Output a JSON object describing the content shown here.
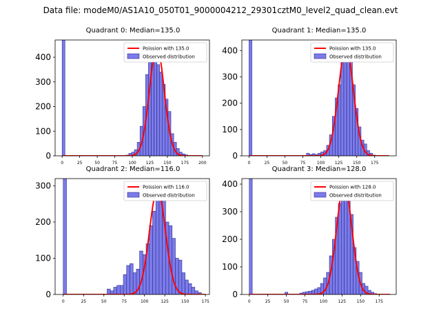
{
  "figure": {
    "suptitle": "Data file: modeM0/AS1A10_050T01_9000004212_29301cztM0_level2_quad_clean.evt"
  },
  "colors": {
    "bar_fill": "#7b7bea",
    "bar_edge": "#2c2c8a",
    "curve": "#ff0000",
    "axis": "#000000"
  },
  "chart_data": [
    {
      "type": "bar",
      "title": "Quadrant 0: Median=135.0",
      "median": 135.0,
      "bin_width": 4,
      "xlim": [
        -10,
        210
      ],
      "ylim": [
        0,
        470
      ],
      "xticks": [
        0,
        25,
        50,
        75,
        100,
        125,
        150,
        175,
        200
      ],
      "yticks": [
        0,
        100,
        200,
        300,
        400
      ],
      "legend": [
        "Poission with 135.0",
        "Observed distribution"
      ],
      "legend_position": "top-right",
      "bins": [
        [
          0,
          470
        ],
        [
          91,
          3
        ],
        [
          95,
          10
        ],
        [
          99,
          15
        ],
        [
          103,
          25
        ],
        [
          107,
          55
        ],
        [
          111,
          120
        ],
        [
          115,
          200
        ],
        [
          119,
          330
        ],
        [
          123,
          400
        ],
        [
          127,
          430
        ],
        [
          131,
          440
        ],
        [
          135,
          370
        ],
        [
          139,
          340
        ],
        [
          143,
          290
        ],
        [
          147,
          230
        ],
        [
          151,
          180
        ],
        [
          155,
          90
        ],
        [
          159,
          55
        ],
        [
          163,
          30
        ],
        [
          167,
          15
        ],
        [
          171,
          8
        ],
        [
          175,
          4
        ],
        [
          179,
          2
        ]
      ],
      "curve": {
        "mean": 135.0,
        "sigma": 10.5,
        "peak": 440,
        "x": [
          0,
          200
        ]
      }
    },
    {
      "type": "bar",
      "title": "Quadrant 1: Median=135.0",
      "median": 135.0,
      "bin_width": 4,
      "xlim": [
        -10,
        205
      ],
      "ylim": [
        0,
        440
      ],
      "xticks": [
        0,
        25,
        50,
        75,
        100,
        125,
        150,
        175
      ],
      "yticks": [
        0,
        100,
        200,
        300,
        400
      ],
      "legend": [
        "Poission with 135.0",
        "Observed distribution"
      ],
      "legend_position": "top-right",
      "bins": [
        [
          0,
          440
        ],
        [
          80,
          10
        ],
        [
          84,
          5
        ],
        [
          88,
          8
        ],
        [
          92,
          5
        ],
        [
          96,
          10
        ],
        [
          100,
          15
        ],
        [
          104,
          20
        ],
        [
          108,
          40
        ],
        [
          112,
          80
        ],
        [
          116,
          150
        ],
        [
          120,
          220
        ],
        [
          124,
          270
        ],
        [
          128,
          380
        ],
        [
          132,
          410
        ],
        [
          136,
          410
        ],
        [
          140,
          370
        ],
        [
          144,
          270
        ],
        [
          148,
          180
        ],
        [
          152,
          110
        ],
        [
          156,
          60
        ],
        [
          160,
          45
        ],
        [
          164,
          20
        ],
        [
          168,
          10
        ],
        [
          172,
          3
        ]
      ],
      "curve": {
        "mean": 135.0,
        "sigma": 10.5,
        "peak": 410,
        "x": [
          0,
          195
        ]
      }
    },
    {
      "type": "bar",
      "title": "Quadrant 2: Median=116.0",
      "median": 116.0,
      "bin_width": 4,
      "xlim": [
        -10,
        180
      ],
      "ylim": [
        0,
        320
      ],
      "xticks": [
        0,
        25,
        50,
        75,
        100,
        125,
        150,
        175
      ],
      "yticks": [
        0,
        100,
        200,
        300
      ],
      "legend": [
        "Poission with 116.0",
        "Observed distribution"
      ],
      "legend_position": "top-right",
      "bins": [
        [
          0,
          320
        ],
        [
          54,
          15
        ],
        [
          58,
          10
        ],
        [
          62,
          20
        ],
        [
          66,
          25
        ],
        [
          70,
          25
        ],
        [
          74,
          55
        ],
        [
          78,
          80
        ],
        [
          82,
          85
        ],
        [
          86,
          60
        ],
        [
          90,
          70
        ],
        [
          94,
          120
        ],
        [
          98,
          110
        ],
        [
          102,
          140
        ],
        [
          106,
          190
        ],
        [
          110,
          230
        ],
        [
          114,
          290
        ],
        [
          118,
          280
        ],
        [
          122,
          260
        ],
        [
          126,
          200
        ],
        [
          130,
          190
        ],
        [
          134,
          155
        ],
        [
          138,
          100
        ],
        [
          142,
          95
        ],
        [
          146,
          60
        ],
        [
          150,
          40
        ],
        [
          154,
          30
        ],
        [
          158,
          20
        ],
        [
          162,
          10
        ],
        [
          166,
          5
        ]
      ],
      "curve": {
        "mean": 116.0,
        "sigma": 9.8,
        "peak": 290,
        "x": [
          0,
          175
        ]
      }
    },
    {
      "type": "bar",
      "title": "Quadrant 3: Median=128.0",
      "median": 128.0,
      "bin_width": 4,
      "xlim": [
        -10,
        198
      ],
      "ylim": [
        0,
        420
      ],
      "xticks": [
        0,
        25,
        50,
        75,
        100,
        125,
        150,
        175
      ],
      "yticks": [
        0,
        100,
        200,
        300,
        400
      ],
      "legend": [
        "Poission with 128.0",
        "Observed distribution"
      ],
      "legend_position": "top-right",
      "bins": [
        [
          0,
          420
        ],
        [
          48,
          8
        ],
        [
          68,
          5
        ],
        [
          72,
          8
        ],
        [
          76,
          10
        ],
        [
          80,
          12
        ],
        [
          84,
          15
        ],
        [
          88,
          20
        ],
        [
          92,
          25
        ],
        [
          96,
          40
        ],
        [
          100,
          60
        ],
        [
          104,
          80
        ],
        [
          108,
          140
        ],
        [
          112,
          200
        ],
        [
          116,
          280
        ],
        [
          120,
          330
        ],
        [
          124,
          370
        ],
        [
          128,
          400
        ],
        [
          132,
          380
        ],
        [
          136,
          290
        ],
        [
          140,
          170
        ],
        [
          144,
          120
        ],
        [
          148,
          80
        ],
        [
          152,
          40
        ],
        [
          156,
          30
        ],
        [
          160,
          15
        ],
        [
          164,
          8
        ],
        [
          168,
          3
        ]
      ],
      "curve": {
        "mean": 128.0,
        "sigma": 10.2,
        "peak": 400,
        "x": [
          0,
          190
        ]
      }
    }
  ]
}
